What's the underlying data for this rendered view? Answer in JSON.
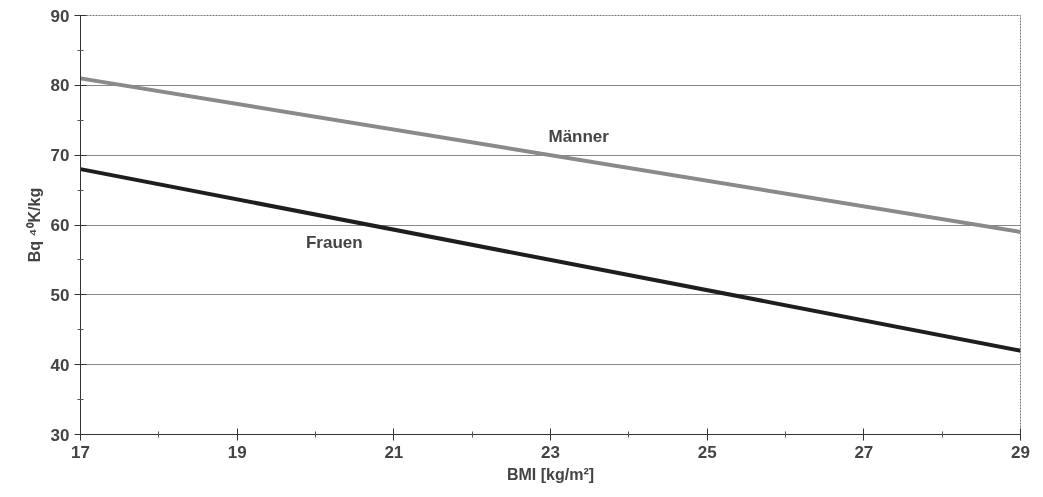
{
  "chart_data": {
    "type": "line",
    "xlabel": "BMI [kg/m²]",
    "ylabel": "Bq ⁴⁰K/kg",
    "x": [
      17,
      29
    ],
    "series": [
      {
        "name": "Männer",
        "color": "#8a8a8a",
        "values": [
          81,
          59
        ]
      },
      {
        "name": "Frauen",
        "color": "#1e1e1e",
        "values": [
          68,
          42
        ]
      }
    ],
    "xlim": [
      17,
      29
    ],
    "xticks": [
      17,
      19,
      21,
      23,
      25,
      27,
      29
    ],
    "ylim": [
      30,
      90
    ],
    "yticks": [
      30,
      40,
      50,
      60,
      70,
      80,
      90
    ],
    "grid": "y",
    "legend": false,
    "marker": "none",
    "line_style": "solid"
  }
}
